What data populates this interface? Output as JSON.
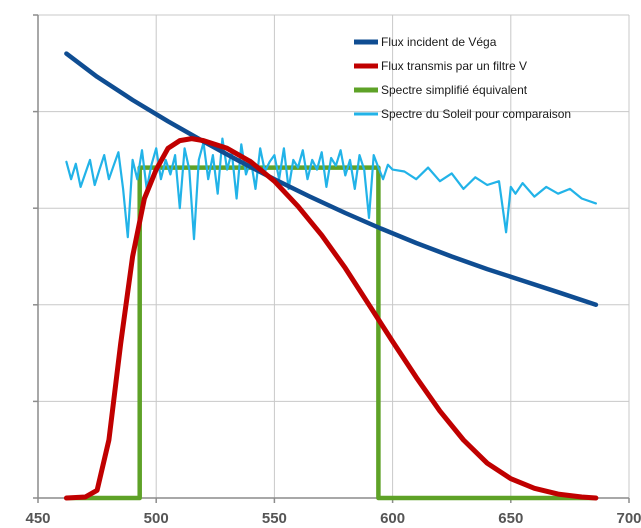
{
  "chart_data": {
    "type": "line",
    "title": "",
    "xlabel": "",
    "ylabel": "",
    "xlim": [
      450,
      700
    ],
    "ylim": [
      0,
      5
    ],
    "x_ticks": [
      450,
      500,
      550,
      600,
      650,
      700
    ],
    "y_ticks_labeled": false,
    "grid": true,
    "legend_position": "top-right",
    "series": [
      {
        "name": "Flux incident de Véga",
        "color": "#0f4d92",
        "style": "line",
        "x": [
          462,
          475,
          490,
          505,
          520,
          535,
          550,
          565,
          580,
          595,
          610,
          625,
          640,
          655,
          670,
          686
        ],
        "y": [
          4.6,
          4.36,
          4.12,
          3.9,
          3.69,
          3.49,
          3.3,
          3.12,
          2.95,
          2.79,
          2.64,
          2.5,
          2.37,
          2.25,
          2.13,
          2.0
        ]
      },
      {
        "name": "Flux transmis par un filtre V",
        "color": "#c00000",
        "style": "line",
        "x": [
          462,
          470,
          475,
          480,
          485,
          490,
          495,
          500,
          505,
          510,
          515,
          520,
          530,
          540,
          550,
          560,
          570,
          580,
          590,
          600,
          610,
          620,
          630,
          640,
          650,
          660,
          670,
          680,
          686
        ],
        "y": [
          0,
          0.01,
          0.08,
          0.6,
          1.6,
          2.5,
          3.1,
          3.4,
          3.62,
          3.7,
          3.72,
          3.7,
          3.62,
          3.48,
          3.28,
          3.02,
          2.72,
          2.38,
          2.0,
          1.62,
          1.25,
          0.9,
          0.6,
          0.36,
          0.2,
          0.1,
          0.04,
          0.01,
          0.0
        ]
      },
      {
        "name": "Spectre simplifié équivalent",
        "color": "#5ea227",
        "style": "step",
        "x": [
          462,
          493,
          493,
          594,
          594,
          686
        ],
        "y": [
          0,
          0,
          3.42,
          3.42,
          0,
          0
        ]
      },
      {
        "name": "Spectre du Soleil  pour comparaison",
        "color": "#22b3e8",
        "style": "line",
        "x": [
          462,
          464,
          466,
          468,
          470,
          472,
          474,
          476,
          478,
          480,
          482,
          484,
          486,
          488,
          490,
          492,
          494,
          496,
          498,
          500,
          502,
          504,
          506,
          508,
          510,
          512,
          514,
          516,
          518,
          520,
          522,
          524,
          526,
          528,
          530,
          532,
          534,
          536,
          538,
          540,
          542,
          544,
          546,
          548,
          550,
          552,
          554,
          556,
          558,
          560,
          562,
          564,
          566,
          568,
          570,
          572,
          574,
          576,
          578,
          580,
          582,
          584,
          586,
          588,
          590,
          592,
          594,
          596,
          598,
          600,
          605,
          610,
          615,
          620,
          625,
          630,
          635,
          640,
          645,
          648,
          650,
          652,
          655,
          660,
          665,
          670,
          675,
          680,
          686
        ],
        "y": [
          3.48,
          3.3,
          3.46,
          3.22,
          3.36,
          3.5,
          3.24,
          3.4,
          3.55,
          3.3,
          3.44,
          3.58,
          3.2,
          2.7,
          3.5,
          3.3,
          3.6,
          3.2,
          3.45,
          3.62,
          3.3,
          3.5,
          3.35,
          3.55,
          3.0,
          3.62,
          3.4,
          2.68,
          3.5,
          3.68,
          3.3,
          3.55,
          3.15,
          3.72,
          3.4,
          3.58,
          3.1,
          3.66,
          3.35,
          3.5,
          3.2,
          3.62,
          3.38,
          3.48,
          3.55,
          3.3,
          3.62,
          3.2,
          3.5,
          3.42,
          3.6,
          3.3,
          3.5,
          3.4,
          3.58,
          3.22,
          3.52,
          3.44,
          3.6,
          3.34,
          3.5,
          3.2,
          3.55,
          3.4,
          2.9,
          3.55,
          3.42,
          3.3,
          3.45,
          3.4,
          3.38,
          3.3,
          3.42,
          3.28,
          3.36,
          3.2,
          3.32,
          3.24,
          3.28,
          2.75,
          3.22,
          3.15,
          3.26,
          3.12,
          3.22,
          3.15,
          3.2,
          3.1,
          3.05
        ]
      }
    ]
  }
}
